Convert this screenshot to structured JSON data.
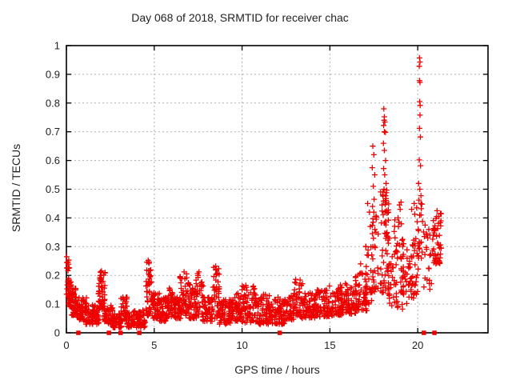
{
  "title": "Day 068 of 2018, SRMTID for receiver chac",
  "colors": {
    "marker": "#ee0000",
    "grid": "#b0b0b0",
    "axis": "#000000",
    "background": "#ffffff"
  },
  "chart_data": {
    "type": "scatter",
    "title": "Day 068 of 2018, SRMTID for receiver chac",
    "xlabel": "GPS time / hours",
    "ylabel": "SRMTID / TECUs",
    "xlim": [
      0,
      24
    ],
    "ylim": [
      0,
      1
    ],
    "xticks": [
      0,
      5,
      10,
      15,
      20
    ],
    "yticks": [
      0,
      0.1,
      0.2,
      0.3,
      0.4,
      0.5,
      0.6,
      0.7,
      0.8,
      0.9,
      1
    ],
    "grid": true,
    "legend": "none",
    "series": [
      {
        "name": "srmtid-plus-markers",
        "marker": "plus",
        "bands": [
          [
            0.0,
            0.18,
            0.1,
            0.26,
            28
          ],
          [
            0.15,
            0.35,
            0.09,
            0.2,
            28
          ],
          [
            0.3,
            0.65,
            0.06,
            0.155,
            40
          ],
          [
            0.6,
            1.15,
            0.045,
            0.125,
            60
          ],
          [
            1.1,
            1.85,
            0.03,
            0.1,
            75
          ],
          [
            1.82,
            2.2,
            0.08,
            0.215,
            50
          ],
          [
            2.15,
            2.65,
            0.03,
            0.095,
            45
          ],
          [
            2.6,
            3.15,
            0.018,
            0.07,
            50
          ],
          [
            3.1,
            3.5,
            0.04,
            0.13,
            38
          ],
          [
            3.45,
            4.5,
            0.018,
            0.08,
            85
          ],
          [
            4.5,
            4.9,
            0.06,
            0.25,
            42
          ],
          [
            4.85,
            5.35,
            0.05,
            0.145,
            48
          ],
          [
            5.3,
            5.8,
            0.04,
            0.125,
            48
          ],
          [
            5.75,
            6.2,
            0.055,
            0.16,
            42
          ],
          [
            6.15,
            6.5,
            0.05,
            0.125,
            32
          ],
          [
            6.45,
            7.0,
            0.06,
            0.21,
            52
          ],
          [
            6.95,
            7.4,
            0.05,
            0.17,
            40
          ],
          [
            7.35,
            7.8,
            0.055,
            0.21,
            42
          ],
          [
            7.75,
            8.3,
            0.04,
            0.125,
            48
          ],
          [
            8.3,
            8.75,
            0.05,
            0.23,
            46
          ],
          [
            8.7,
            9.5,
            0.03,
            0.115,
            70
          ],
          [
            9.45,
            10.0,
            0.04,
            0.155,
            48
          ],
          [
            9.95,
            10.8,
            0.035,
            0.165,
            70
          ],
          [
            10.75,
            11.6,
            0.03,
            0.135,
            70
          ],
          [
            11.55,
            12.45,
            0.03,
            0.125,
            72
          ],
          [
            12.4,
            12.95,
            0.045,
            0.13,
            46
          ],
          [
            12.9,
            13.45,
            0.055,
            0.185,
            46
          ],
          [
            13.4,
            14.2,
            0.05,
            0.14,
            68
          ],
          [
            14.15,
            15.0,
            0.055,
            0.15,
            68
          ],
          [
            14.95,
            15.7,
            0.06,
            0.17,
            60
          ],
          [
            15.65,
            16.5,
            0.065,
            0.175,
            70
          ],
          [
            16.45,
            17.15,
            0.075,
            0.21,
            55
          ],
          [
            17.0,
            17.45,
            0.1,
            0.32,
            26
          ],
          [
            17.4,
            17.75,
            0.12,
            0.42,
            26
          ],
          [
            17.88,
            18.38,
            0.14,
            0.5,
            60
          ],
          [
            18.3,
            18.65,
            0.09,
            0.27,
            20
          ],
          [
            18.65,
            19.2,
            0.08,
            0.4,
            48
          ],
          [
            19.15,
            19.7,
            0.1,
            0.31,
            30
          ],
          [
            19.65,
            20.05,
            0.12,
            0.44,
            32
          ],
          [
            20.02,
            20.28,
            0.26,
            0.5,
            16
          ],
          [
            20.3,
            20.8,
            0.14,
            0.4,
            16
          ],
          [
            20.85,
            21.35,
            0.24,
            0.42,
            48
          ]
        ],
        "points": [
          [
            0.02,
            0.265
          ],
          [
            0.05,
            0.245
          ],
          [
            0.03,
            0.225
          ],
          [
            2.0,
            0.215
          ],
          [
            4.66,
            0.252
          ],
          [
            4.7,
            0.242
          ],
          [
            6.7,
            0.212
          ],
          [
            7.55,
            0.212
          ],
          [
            8.5,
            0.232
          ],
          [
            8.53,
            0.222
          ],
          [
            13.05,
            0.186
          ],
          [
            16.75,
            0.24
          ],
          [
            17.05,
            0.3
          ],
          [
            17.15,
            0.45
          ],
          [
            17.25,
            0.42
          ],
          [
            17.3,
            0.37
          ],
          [
            17.44,
            0.65
          ],
          [
            17.5,
            0.62
          ],
          [
            17.41,
            0.575
          ],
          [
            17.55,
            0.55
          ],
          [
            17.47,
            0.51
          ],
          [
            17.52,
            0.465
          ],
          [
            17.43,
            0.44
          ],
          [
            17.5,
            0.42
          ],
          [
            17.46,
            0.385
          ],
          [
            17.56,
            0.36
          ],
          [
            17.42,
            0.345
          ],
          [
            18.07,
            0.78
          ],
          [
            18.1,
            0.752
          ],
          [
            18.09,
            0.74
          ],
          [
            18.13,
            0.734
          ],
          [
            18.06,
            0.722
          ],
          [
            18.1,
            0.7
          ],
          [
            18.16,
            0.698
          ],
          [
            18.05,
            0.66
          ],
          [
            18.1,
            0.635
          ],
          [
            18.17,
            0.6
          ],
          [
            18.06,
            0.572
          ],
          [
            18.12,
            0.55
          ],
          [
            18.2,
            0.52
          ],
          [
            18.08,
            0.5
          ],
          [
            18.0,
            0.48
          ],
          [
            18.15,
            0.46
          ],
          [
            17.97,
            0.445
          ],
          [
            18.22,
            0.425
          ],
          [
            18.88,
            0.4
          ],
          [
            18.92,
            0.385
          ],
          [
            18.9,
            0.37
          ],
          [
            18.96,
            0.445
          ],
          [
            19.0,
            0.43
          ],
          [
            19.05,
            0.455
          ],
          [
            19.65,
            0.43
          ],
          [
            19.8,
            0.45
          ],
          [
            20.1,
            0.957
          ],
          [
            20.13,
            0.943
          ],
          [
            20.09,
            0.928
          ],
          [
            20.1,
            0.878
          ],
          [
            20.13,
            0.872
          ],
          [
            20.11,
            0.805
          ],
          [
            20.14,
            0.792
          ],
          [
            20.13,
            0.758
          ],
          [
            20.1,
            0.712
          ],
          [
            20.15,
            0.682
          ],
          [
            20.09,
            0.602
          ],
          [
            20.16,
            0.582
          ],
          [
            20.05,
            0.52
          ],
          [
            20.12,
            0.5
          ],
          [
            20.2,
            0.432
          ],
          [
            20.07,
            0.462
          ],
          [
            20.42,
            0.375
          ],
          [
            20.5,
            0.345
          ],
          [
            20.57,
            0.33
          ],
          [
            20.63,
            0.36
          ],
          [
            20.38,
            0.335
          ],
          [
            20.7,
            0.34
          ],
          [
            21.1,
            0.425
          ],
          [
            21.2,
            0.405
          ],
          [
            21.32,
            0.39
          ]
        ]
      },
      {
        "name": "zero-flag-squares",
        "marker": "square",
        "points": [
          [
            0.68,
            0
          ],
          [
            2.42,
            0
          ],
          [
            3.08,
            0
          ],
          [
            4.15,
            0
          ],
          [
            12.15,
            0
          ],
          [
            20.35,
            0
          ],
          [
            20.95,
            0
          ]
        ]
      }
    ]
  }
}
